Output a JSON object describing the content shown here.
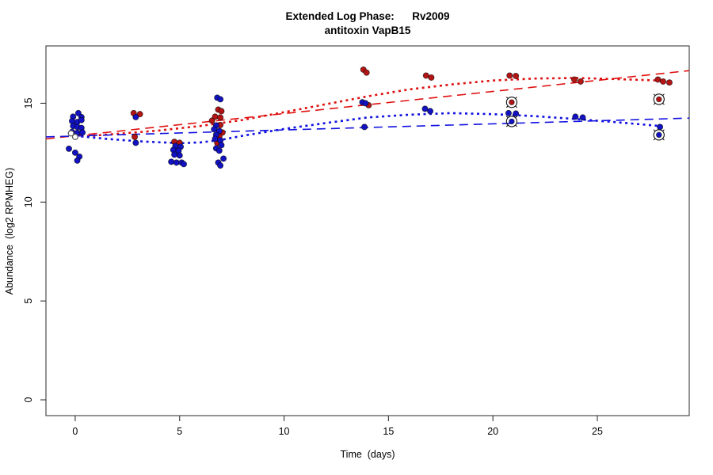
{
  "figure": {
    "title_line1": "Extended Log Phase:      Rv2009",
    "title_line2": "antitoxin VapB15",
    "xlabel": "Time  (days)",
    "ylabel": "Abundance  (log2 RPMHEG)"
  },
  "chart_data": {
    "type": "scatter",
    "title": "Extended Log Phase: Rv2009 / antitoxin VapB15",
    "xlabel": "Time (days)",
    "ylabel": "Abundance (log2 RPMHEG)",
    "xlim": [
      -1.4,
      29.4
    ],
    "ylim": [
      -0.8,
      17.9
    ],
    "xticks": [
      0,
      5,
      10,
      15,
      20,
      25
    ],
    "yticks": [
      0,
      5,
      10,
      15
    ],
    "grid": false,
    "legend": "none",
    "colors": {
      "red_points": "#b51414",
      "blue_points": "#1212c4",
      "red_line": "#e01010",
      "blue_line": "#1010e0",
      "box": "#4d4d4d",
      "open_point": "#ffffff"
    },
    "series": [
      {
        "name": "red-samples",
        "marker": "filled",
        "color": "#b51414",
        "points": [
          [
            2.8,
            14.5
          ],
          [
            3.1,
            14.45
          ],
          [
            2.85,
            13.3
          ],
          [
            4.75,
            13.05
          ],
          [
            5.0,
            13.0
          ],
          [
            6.85,
            14.68
          ],
          [
            7.0,
            14.6
          ],
          [
            6.7,
            14.32
          ],
          [
            6.95,
            14.28
          ],
          [
            6.55,
            14.12
          ],
          [
            6.95,
            13.9
          ],
          [
            7.05,
            13.52
          ],
          [
            6.9,
            13.32
          ],
          [
            6.8,
            13.0
          ],
          [
            13.8,
            16.7
          ],
          [
            13.95,
            16.55
          ],
          [
            14.05,
            14.9
          ],
          [
            16.8,
            16.4
          ],
          [
            17.05,
            16.3
          ],
          [
            20.8,
            16.4
          ],
          [
            21.1,
            16.38
          ],
          [
            23.9,
            16.2
          ],
          [
            24.2,
            16.1
          ],
          [
            27.9,
            16.2
          ],
          [
            28.15,
            16.1
          ],
          [
            28.45,
            16.05
          ]
        ]
      },
      {
        "name": "blue-samples",
        "marker": "filled",
        "color": "#1212c4",
        "points": [
          [
            0.15,
            14.5
          ],
          [
            -0.1,
            14.32
          ],
          [
            0.3,
            14.3
          ],
          [
            -0.15,
            14.1
          ],
          [
            0.1,
            14.05
          ],
          [
            0.3,
            14.15
          ],
          [
            -0.1,
            13.85
          ],
          [
            0.1,
            13.8
          ],
          [
            0.3,
            13.75
          ],
          [
            -0.15,
            13.55
          ],
          [
            0.1,
            13.5
          ],
          [
            0.35,
            13.52
          ],
          [
            -0.3,
            12.7
          ],
          [
            0.0,
            12.5
          ],
          [
            0.2,
            12.3
          ],
          [
            0.1,
            12.1
          ],
          [
            2.9,
            14.3
          ],
          [
            2.9,
            13.0
          ],
          [
            4.8,
            12.84
          ],
          [
            5.05,
            12.8
          ],
          [
            4.7,
            12.64
          ],
          [
            4.95,
            12.6
          ],
          [
            4.75,
            12.4
          ],
          [
            5.0,
            12.36
          ],
          [
            4.6,
            12.04
          ],
          [
            4.85,
            12.0
          ],
          [
            5.1,
            12.0
          ],
          [
            5.2,
            11.92
          ],
          [
            6.8,
            15.28
          ],
          [
            6.95,
            15.2
          ],
          [
            6.75,
            13.88
          ],
          [
            6.65,
            13.68
          ],
          [
            6.9,
            13.6
          ],
          [
            6.75,
            13.4
          ],
          [
            6.7,
            13.2
          ],
          [
            6.95,
            13.12
          ],
          [
            7.0,
            12.88
          ],
          [
            6.75,
            12.72
          ],
          [
            6.9,
            12.6
          ],
          [
            7.1,
            12.2
          ],
          [
            6.85,
            12.0
          ],
          [
            6.95,
            11.85
          ],
          [
            13.75,
            15.05
          ],
          [
            13.9,
            15.0
          ],
          [
            13.85,
            13.8
          ],
          [
            16.75,
            14.72
          ],
          [
            17.0,
            14.6
          ],
          [
            20.75,
            14.5
          ],
          [
            21.1,
            14.48
          ],
          [
            23.95,
            14.32
          ],
          [
            24.3,
            14.28
          ],
          [
            28.0,
            13.8
          ]
        ]
      },
      {
        "name": "red-circled-outliers",
        "marker": "circled",
        "color": "#b51414",
        "points": [
          [
            20.9,
            15.05
          ],
          [
            27.95,
            15.2
          ]
        ]
      },
      {
        "name": "blue-circled-outliers",
        "marker": "circled",
        "color": "#1212c4",
        "points": [
          [
            20.9,
            14.08
          ],
          [
            27.95,
            13.4
          ]
        ]
      },
      {
        "name": "open-points",
        "marker": "open",
        "color": "#ffffff",
        "points": [
          [
            -0.2,
            13.48
          ],
          [
            0.0,
            13.3
          ]
        ]
      }
    ],
    "trend_lines": [
      {
        "name": "red-lowess",
        "style": "dotted",
        "width": 2.6,
        "color": "#e01010",
        "points": [
          [
            0,
            13.3
          ],
          [
            2,
            13.45
          ],
          [
            4,
            13.62
          ],
          [
            6,
            13.85
          ],
          [
            8,
            14.15
          ],
          [
            10,
            14.55
          ],
          [
            12,
            14.95
          ],
          [
            14,
            15.35
          ],
          [
            16,
            15.7
          ],
          [
            18,
            15.95
          ],
          [
            20,
            16.15
          ],
          [
            22,
            16.25
          ],
          [
            24,
            16.28
          ],
          [
            26,
            16.22
          ],
          [
            28,
            16.15
          ]
        ]
      },
      {
        "name": "red-linear-fit",
        "style": "longdash",
        "width": 1.6,
        "color": "#e01010",
        "points": [
          [
            -1.4,
            13.2
          ],
          [
            29.4,
            16.65
          ]
        ]
      },
      {
        "name": "blue-lowess",
        "style": "dotted",
        "width": 2.6,
        "color": "#1010e0",
        "points": [
          [
            0,
            13.35
          ],
          [
            1.5,
            13.2
          ],
          [
            3,
            13.08
          ],
          [
            5,
            12.98
          ],
          [
            6,
            13.02
          ],
          [
            7,
            13.15
          ],
          [
            8,
            13.35
          ],
          [
            10,
            13.7
          ],
          [
            12,
            14.0
          ],
          [
            14,
            14.28
          ],
          [
            16,
            14.42
          ],
          [
            18,
            14.5
          ],
          [
            20,
            14.45
          ],
          [
            22,
            14.35
          ],
          [
            24,
            14.2
          ],
          [
            26,
            14.03
          ],
          [
            28,
            13.85
          ]
        ]
      },
      {
        "name": "blue-linear-fit",
        "style": "longdash",
        "width": 1.6,
        "color": "#1010e0",
        "points": [
          [
            -1.4,
            13.3
          ],
          [
            29.4,
            14.25
          ]
        ]
      }
    ]
  }
}
